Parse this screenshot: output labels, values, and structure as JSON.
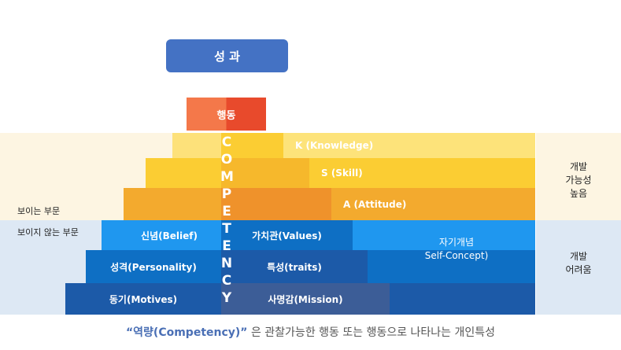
{
  "outcome": "성 과",
  "behavior": "행동",
  "competency_letters": [
    "C",
    "O",
    "M",
    "P",
    "E",
    "T",
    "E",
    "N",
    "C",
    "Y"
  ],
  "visible": {
    "label": "보이는 부문",
    "items": [
      "K (Knowledge)",
      "S (Skill)",
      "A (Attitude)"
    ],
    "right_label": [
      "개발",
      "가능성",
      "높음"
    ]
  },
  "hidden": {
    "label": "보이지 않는 부문",
    "left_items": [
      "신념(Belief)",
      "성격(Personality)",
      "동기(Motives)"
    ],
    "right_items": [
      "가치관(Values)",
      "특성(traits)",
      "사명감(Mission)"
    ],
    "self_concept": [
      "자기개념",
      "Self-Concept)"
    ],
    "right_label": [
      "개발",
      "어려움"
    ]
  },
  "caption": {
    "emphasis": "“역량(Competency)”",
    "rest": " 은 관찰가능한 행동 또는 행동으로 나타나는 개인특성"
  },
  "colors": {
    "outcome": "#4472c4",
    "behavior_light": "#f4784a",
    "behavior_dark": "#e84a2c",
    "yellow_light": "#fde37a",
    "yellow": "#fbcd33",
    "orange": "#f3aa2e",
    "blue_light": "#1f97ef",
    "blue_mid": "#0e6fc4",
    "blue_dark": "#1c5aa8",
    "band_top": "#fdf5e2",
    "band_bottom": "#dde8f4"
  }
}
